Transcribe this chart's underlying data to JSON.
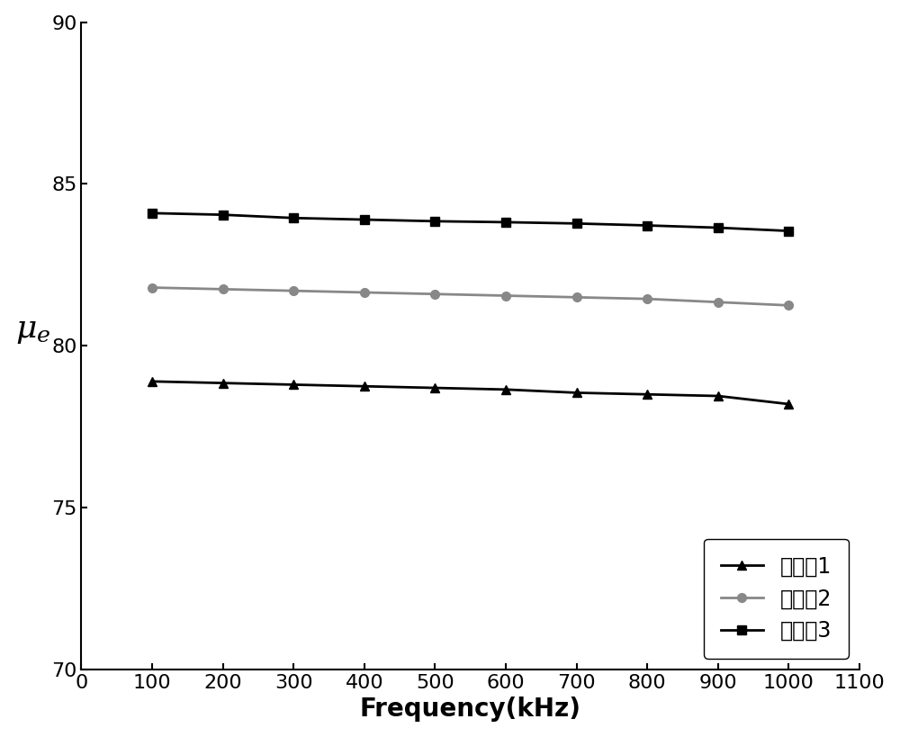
{
  "x": [
    100,
    200,
    300,
    400,
    500,
    600,
    700,
    800,
    900,
    1000
  ],
  "series1": [
    78.9,
    78.85,
    78.8,
    78.75,
    78.7,
    78.65,
    78.55,
    78.5,
    78.45,
    78.2
  ],
  "series2": [
    81.8,
    81.75,
    81.7,
    81.65,
    81.6,
    81.55,
    81.5,
    81.45,
    81.35,
    81.25
  ],
  "series3": [
    84.1,
    84.05,
    83.95,
    83.9,
    83.85,
    83.82,
    83.78,
    83.72,
    83.65,
    83.55
  ],
  "series1_color": "#000000",
  "series2_color": "#888888",
  "series3_color": "#000000",
  "markers": [
    "^",
    "o",
    "s"
  ],
  "labels": [
    "实施例1",
    "实施例2",
    "实施例3"
  ],
  "xlabel": "Frequency(kHz)",
  "xlim": [
    0,
    1100
  ],
  "ylim": [
    70,
    90
  ],
  "xticks": [
    0,
    100,
    200,
    300,
    400,
    500,
    600,
    700,
    800,
    900,
    1000,
    1100
  ],
  "yticks": [
    70,
    75,
    80,
    85,
    90
  ],
  "linewidth": 2.0,
  "markersize": 7
}
